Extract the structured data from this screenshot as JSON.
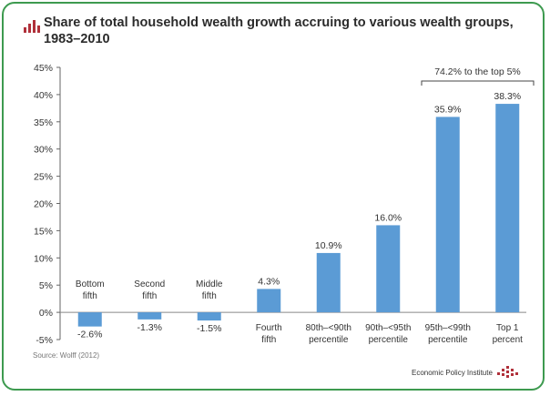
{
  "title": "Share of total household wealth growth accruing to various wealth groups, 1983–2010",
  "source": "Source: Wolff (2012)",
  "brand": "Economic Policy Institute",
  "colors": {
    "bar": "#5b9bd5",
    "accent": "#b0303a",
    "frame": "#3d9a4f"
  },
  "icons": {
    "title": "bar-chart-icon",
    "brand": "epi-logo-icon"
  },
  "chart_data": {
    "type": "bar",
    "categories": [
      "Bottom fifth",
      "Second fifth",
      "Middle fifth",
      "Fourth fifth",
      "80th–<90th percentile",
      "90th–<95th percentile",
      "95th–<99th percentile",
      "Top 1 percent"
    ],
    "values": [
      -2.6,
      -1.3,
      -1.5,
      4.3,
      10.9,
      16.0,
      35.9,
      38.3
    ],
    "value_labels": [
      "-2.6%",
      "-1.3%",
      "-1.5%",
      "4.3%",
      "10.9%",
      "16.0%",
      "35.9%",
      "38.3%"
    ],
    "category_label_position": [
      "above",
      "above",
      "above",
      "below",
      "below",
      "below",
      "below",
      "below"
    ],
    "ylim": [
      -5,
      45
    ],
    "yticks": [
      -5,
      0,
      5,
      10,
      15,
      20,
      25,
      30,
      35,
      40,
      45
    ],
    "ytick_labels": [
      "-5%",
      "0%",
      "5%",
      "10%",
      "15%",
      "20%",
      "25%",
      "30%",
      "35%",
      "40%",
      "45%"
    ],
    "xlabel": "",
    "ylabel": "",
    "grid": false,
    "legend": "none",
    "annotation": {
      "text": "74.2% to the top 5%",
      "span": [
        "95th–<99th percentile",
        "Top 1 percent"
      ]
    }
  }
}
